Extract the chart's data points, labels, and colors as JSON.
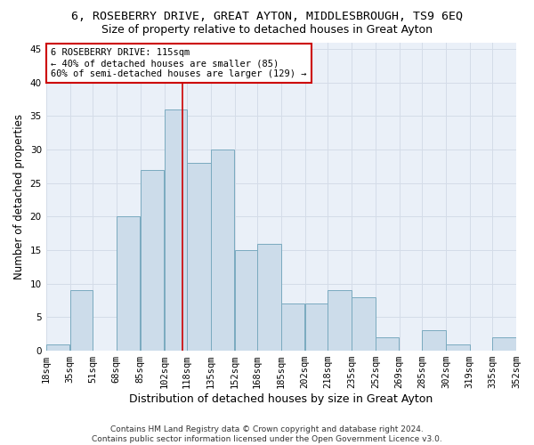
{
  "title": "6, ROSEBERRY DRIVE, GREAT AYTON, MIDDLESBROUGH, TS9 6EQ",
  "subtitle": "Size of property relative to detached houses in Great Ayton",
  "xlabel": "Distribution of detached houses by size in Great Ayton",
  "ylabel": "Number of detached properties",
  "footer_line1": "Contains HM Land Registry data © Crown copyright and database right 2024.",
  "footer_line2": "Contains public sector information licensed under the Open Government Licence v3.0.",
  "property_label": "6 ROSEBERRY DRIVE: 115sqm",
  "annotation_line1": "← 40% of detached houses are smaller (85)",
  "annotation_line2": "60% of semi-detached houses are larger (129) →",
  "property_size": 115,
  "bar_edges": [
    18,
    35,
    51,
    68,
    85,
    102,
    118,
    135,
    152,
    168,
    185,
    202,
    218,
    235,
    252,
    269,
    285,
    302,
    319,
    335,
    352
  ],
  "bar_heights": [
    1,
    9,
    0,
    20,
    27,
    36,
    28,
    30,
    15,
    16,
    7,
    7,
    9,
    8,
    2,
    0,
    3,
    1,
    0,
    2
  ],
  "bar_color": "#ccdcea",
  "bar_edgecolor": "#7aaabf",
  "vline_color": "#cc0000",
  "vline_x": 115,
  "annotation_box_color": "#cc0000",
  "grid_color": "#d4dce8",
  "ylim": [
    0,
    46
  ],
  "yticks": [
    0,
    5,
    10,
    15,
    20,
    25,
    30,
    35,
    40,
    45
  ],
  "title_fontsize": 9.5,
  "subtitle_fontsize": 9,
  "xlabel_fontsize": 9,
  "ylabel_fontsize": 8.5,
  "tick_fontsize": 7.5,
  "annotation_fontsize": 7.5,
  "footer_fontsize": 6.5
}
